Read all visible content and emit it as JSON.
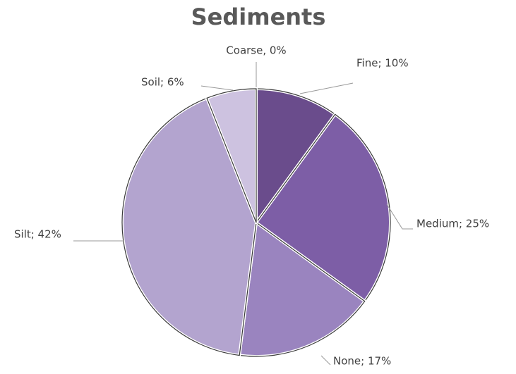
{
  "chart_data": {
    "type": "pie",
    "title": "Sediments",
    "values": [
      0,
      10,
      25,
      17,
      42,
      6
    ],
    "value_labels": [
      "Coarse, 0%",
      "Fine; 10%",
      "Medium; 25%",
      "None; 17%",
      "Silt; 42%",
      "Soil; 6%"
    ],
    "colors": [
      "#5a3f7a",
      "#6a4c8c",
      "#7d5ea6",
      "#9a84bf",
      "#b3a4cf",
      "#cdc2e0"
    ]
  }
}
